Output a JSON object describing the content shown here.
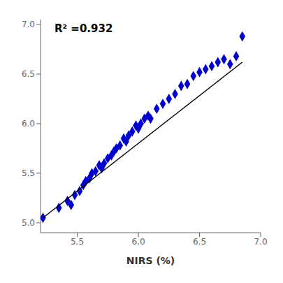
{
  "chart_data": {
    "type": "scatter",
    "xlabel": "NIRS (%)",
    "annotation": "R² =0.932",
    "series": [
      {
        "type": "scatter",
        "marker": "diamond",
        "color": "#0000CC",
        "x": [
          5.22,
          5.35,
          5.42,
          5.45,
          5.48,
          5.52,
          5.55,
          5.57,
          5.6,
          5.62,
          5.65,
          5.68,
          5.7,
          5.72,
          5.75,
          5.78,
          5.8,
          5.82,
          5.85,
          5.88,
          5.9,
          5.92,
          5.95,
          5.98,
          6.0,
          6.02,
          6.05,
          6.08,
          6.1,
          6.15,
          6.2,
          6.25,
          6.3,
          6.35,
          6.4,
          6.45,
          6.5,
          6.55,
          6.6,
          6.65,
          6.7,
          6.75,
          6.8,
          6.85
        ],
        "values": [
          5.05,
          5.15,
          5.22,
          5.18,
          5.28,
          5.32,
          5.38,
          5.42,
          5.45,
          5.5,
          5.52,
          5.58,
          5.55,
          5.6,
          5.65,
          5.68,
          5.72,
          5.75,
          5.78,
          5.85,
          5.82,
          5.88,
          5.92,
          5.98,
          5.95,
          6.0,
          6.05,
          6.08,
          6.05,
          6.15,
          6.2,
          6.25,
          6.3,
          6.38,
          6.4,
          6.48,
          6.52,
          6.55,
          6.58,
          6.62,
          6.65,
          6.6,
          6.68,
          6.88
        ]
      },
      {
        "type": "line",
        "color": "#000000",
        "x": [
          5.22,
          6.85
        ],
        "values": [
          5.05,
          6.62
        ]
      }
    ],
    "xlim": [
      5.2,
      7.0
    ],
    "ylim": [
      4.9,
      7.05
    ],
    "xticks": [
      5.5,
      {
        "value": 6.0,
        "label": "6.0"
      },
      6.5,
      {
        "value": 7.0,
        "label": "7.0"
      }
    ],
    "yticks": [
      {
        "value": 5.0,
        "label": "5.0"
      },
      5.5,
      {
        "value": 6.0,
        "label": "6.0"
      },
      6.5,
      {
        "value": 7.0,
        "label": "7.0"
      }
    ],
    "grid": false
  }
}
